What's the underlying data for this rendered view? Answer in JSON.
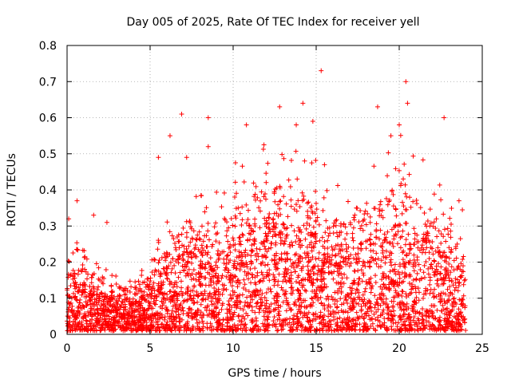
{
  "chart_data": {
    "type": "scatter",
    "title": "Day 005 of 2025, Rate Of TEC Index for receiver yell",
    "xlabel": "GPS time / hours",
    "ylabel": "ROTI / TECUs",
    "xlim": [
      0,
      25
    ],
    "ylim": [
      0,
      0.8
    ],
    "x_ticks": [
      "0",
      "5",
      "10",
      "15",
      "20",
      "25"
    ],
    "y_ticks": [
      "0",
      "0.1",
      "0.2",
      "0.3",
      "0.4",
      "0.5",
      "0.6",
      "0.7",
      "0.8"
    ],
    "grid": true,
    "marker": "+",
    "marker_color": "#ff0000",
    "point_density": "approx. 30-second ROTI samples from all satellites, dense red cloud spanning 0-24 h",
    "envelope_hours": [
      0,
      1,
      2,
      3,
      4,
      5,
      6,
      7,
      8,
      9,
      10,
      11,
      12,
      13,
      14,
      15,
      16,
      17,
      18,
      19,
      20,
      21,
      22,
      23,
      24
    ],
    "envelope_typical_max": [
      0.2,
      0.18,
      0.15,
      0.12,
      0.12,
      0.15,
      0.25,
      0.3,
      0.32,
      0.3,
      0.35,
      0.4,
      0.4,
      0.4,
      0.38,
      0.36,
      0.32,
      0.3,
      0.33,
      0.38,
      0.42,
      0.38,
      0.33,
      0.28,
      0.25
    ],
    "highlighted_points": [
      {
        "x": 0.1,
        "y": 0.32
      },
      {
        "x": 0.6,
        "y": 0.37
      },
      {
        "x": 1.6,
        "y": 0.33
      },
      {
        "x": 2.4,
        "y": 0.31
      },
      {
        "x": 5.5,
        "y": 0.49
      },
      {
        "x": 6.2,
        "y": 0.55
      },
      {
        "x": 6.9,
        "y": 0.61
      },
      {
        "x": 7.2,
        "y": 0.49
      },
      {
        "x": 8.5,
        "y": 0.6
      },
      {
        "x": 8.5,
        "y": 0.52
      },
      {
        "x": 10.8,
        "y": 0.58
      },
      {
        "x": 12.8,
        "y": 0.63
      },
      {
        "x": 13.8,
        "y": 0.58
      },
      {
        "x": 14.2,
        "y": 0.64
      },
      {
        "x": 14.3,
        "y": 0.48
      },
      {
        "x": 14.8,
        "y": 0.59
      },
      {
        "x": 15.3,
        "y": 0.73
      },
      {
        "x": 15.5,
        "y": 0.47
      },
      {
        "x": 18.7,
        "y": 0.63
      },
      {
        "x": 19.5,
        "y": 0.55
      },
      {
        "x": 20.0,
        "y": 0.58
      },
      {
        "x": 20.4,
        "y": 0.7
      },
      {
        "x": 20.5,
        "y": 0.64
      },
      {
        "x": 22.7,
        "y": 0.6
      },
      {
        "x": 23.6,
        "y": 0.37
      }
    ]
  }
}
